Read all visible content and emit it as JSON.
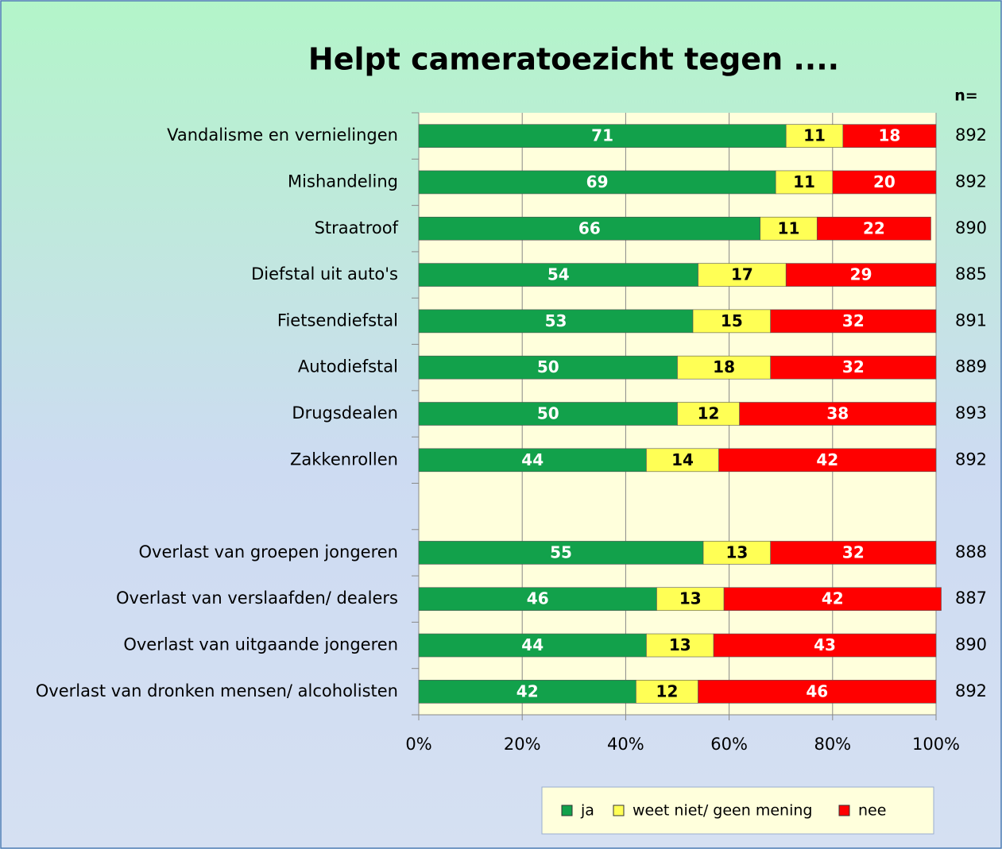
{
  "chart_data": {
    "type": "stacked_barh",
    "title": "Helpt cameratoezicht tegen ....",
    "categories": [
      "Vandalisme en vernielingen",
      "Mishandeling",
      "Straatroof",
      "Diefstal uit auto's",
      "Fietsendiefstal",
      "Autodiefstal",
      "Drugsdealen",
      "Zakkenrollen",
      null,
      "Overlast van groepen jongeren",
      "Overlast van verslaafden/ dealers",
      "Overlast van uitgaande jongeren",
      "Overlast van dronken mensen/ alcoholisten"
    ],
    "series": [
      {
        "name": "ja",
        "color": "#12a14b",
        "values": [
          71,
          69,
          66,
          54,
          53,
          50,
          50,
          44,
          null,
          55,
          46,
          44,
          42
        ]
      },
      {
        "name": "weet niet/ geen mening",
        "color": "#ffff55",
        "values": [
          11,
          11,
          11,
          17,
          15,
          18,
          12,
          14,
          null,
          13,
          13,
          13,
          12
        ]
      },
      {
        "name": "nee",
        "color": "#ff0000",
        "values": [
          18,
          20,
          22,
          29,
          32,
          32,
          38,
          42,
          null,
          32,
          42,
          43,
          46
        ]
      }
    ],
    "n_label": "n=",
    "n": [
      892,
      892,
      890,
      885,
      891,
      889,
      893,
      892,
      null,
      888,
      887,
      890,
      892
    ],
    "xlim": [
      0,
      100
    ],
    "xticks": [
      {
        "value": 0,
        "label": "0%"
      },
      {
        "value": 20,
        "label": "20%"
      },
      {
        "value": 40,
        "label": "40%"
      },
      {
        "value": 60,
        "label": "60%"
      },
      {
        "value": 80,
        "label": "80%"
      },
      {
        "value": 100,
        "label": "100%"
      }
    ],
    "grid": true,
    "legend": "bottom"
  }
}
